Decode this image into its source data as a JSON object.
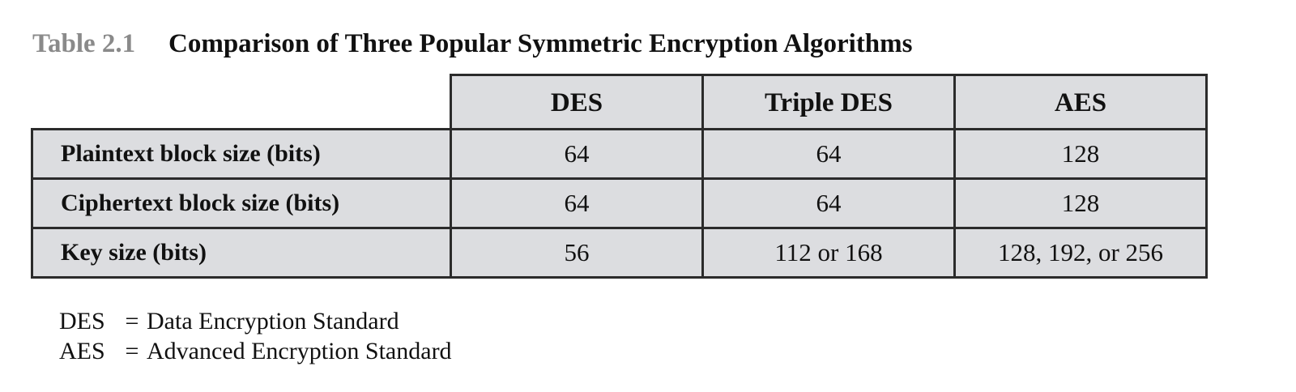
{
  "caption": {
    "label": "Table 2.1",
    "title": "Comparison of Three Popular Symmetric Encryption Algorithms"
  },
  "table": {
    "headers": [
      "DES",
      "Triple DES",
      "AES"
    ],
    "rows": [
      {
        "label": "Plaintext block size (bits)",
        "values": [
          "64",
          "64",
          "128"
        ]
      },
      {
        "label": "Ciphertext block size (bits)",
        "values": [
          "64",
          "64",
          "128"
        ]
      },
      {
        "label": "Key size (bits)",
        "values": [
          "56",
          "112 or 168",
          "128, 192, or 256"
        ]
      }
    ]
  },
  "footnotes": [
    {
      "abbr": "DES",
      "eq": "=",
      "meaning": "Data Encryption Standard"
    },
    {
      "abbr": "AES",
      "eq": "=",
      "meaning": "Advanced Encryption Standard"
    }
  ],
  "colors": {
    "cell_background": "#dcdde0",
    "border": "#2b2b2b",
    "caption_label": "#8a8a8a"
  }
}
